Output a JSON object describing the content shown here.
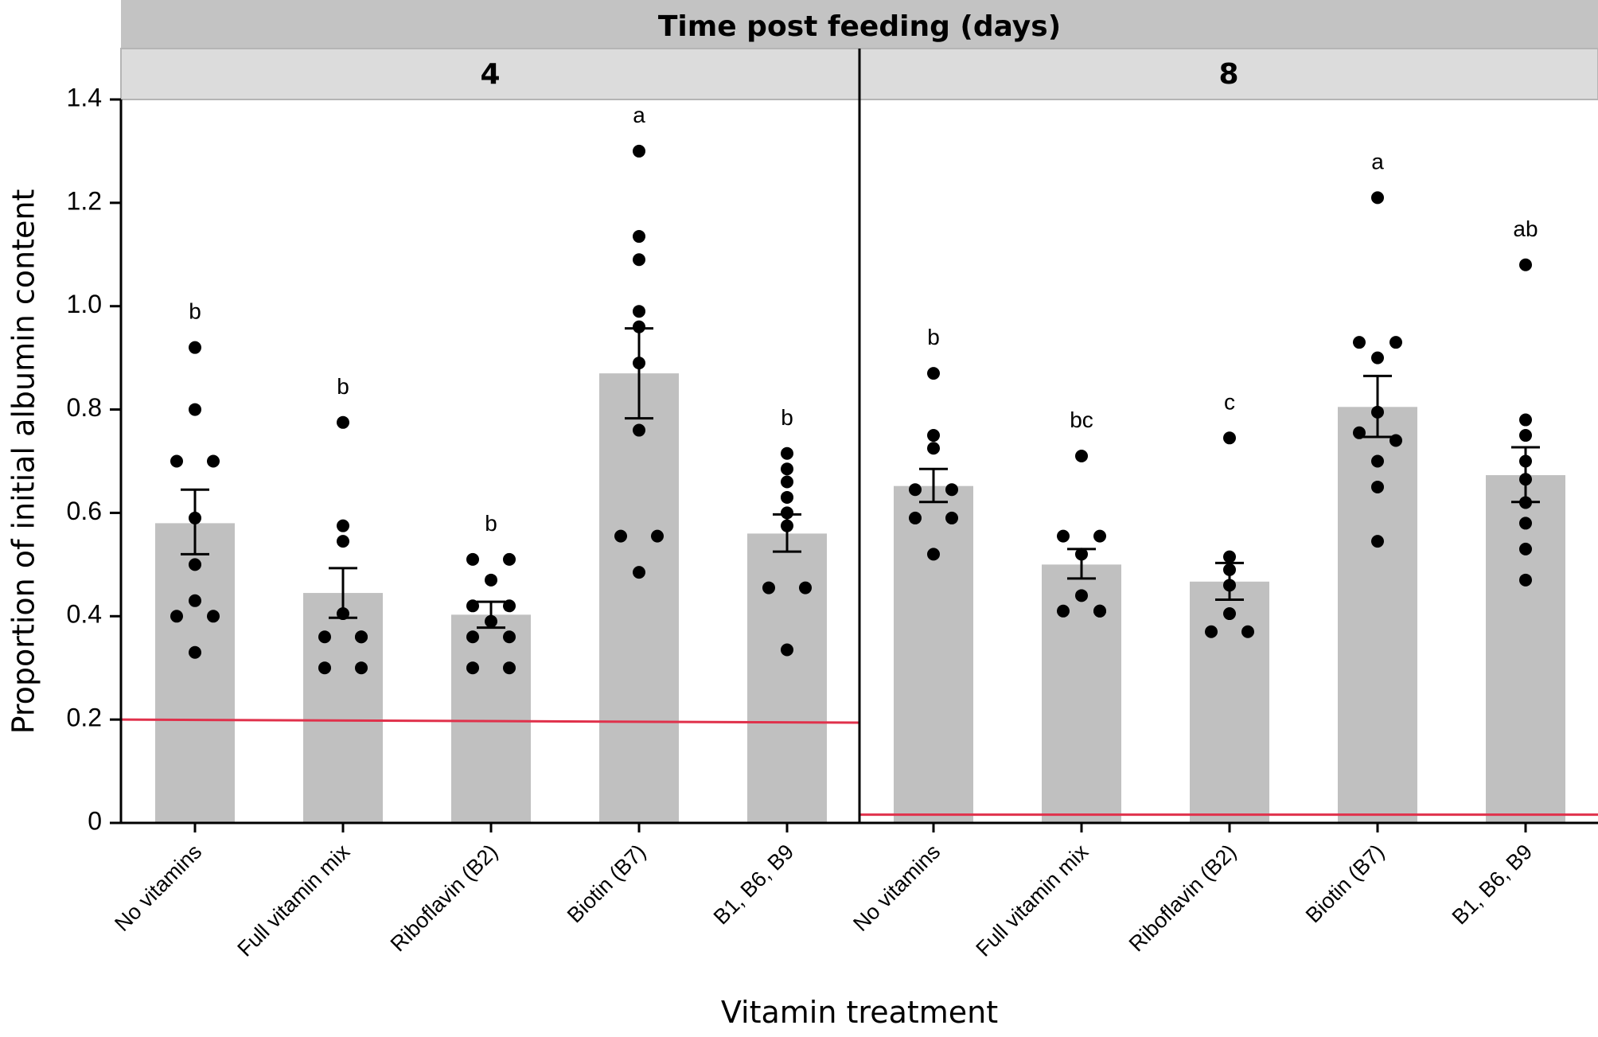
{
  "chart_data": {
    "type": "bar",
    "title": "Time post feeding (days)",
    "xlabel": "Vitamin treatment",
    "ylabel": "Proportion of initial albumin content",
    "ylim": [
      0,
      1.4
    ],
    "yticks": [
      "0",
      "0.2",
      "0.4",
      "0.6",
      "0.8",
      "1.0",
      "1.2",
      "1.4"
    ],
    "ytick_values": [
      0,
      0.2,
      0.4,
      0.6,
      0.8,
      1.0,
      1.2,
      1.4
    ],
    "categories": [
      "No vitamins",
      "Full vitamin mix",
      "Riboflavin (B2)",
      "Biotin (B7)",
      "B1, B6, B9"
    ],
    "colors": {
      "bar": "#c0c0c0",
      "points": "#000000",
      "reference_line": "#e0314b",
      "strip_outer": "#c3c3c3",
      "strip_inner": "#dcdcdc"
    },
    "panels": [
      {
        "label": "4",
        "reference_line": [
          0.2,
          0.194
        ],
        "groups": [
          {
            "category": "No vitamins",
            "mean": 0.58,
            "se_low": 0.52,
            "se_high": 0.645,
            "letter": "b",
            "points": [
              0.92,
              0.8,
              0.7,
              0.7,
              0.59,
              0.5,
              0.43,
              0.4,
              0.4,
              0.33
            ]
          },
          {
            "category": "Full vitamin mix",
            "mean": 0.445,
            "se_low": 0.397,
            "se_high": 0.493,
            "letter": "b",
            "points": [
              0.775,
              0.575,
              0.545,
              0.405,
              0.36,
              0.36,
              0.36,
              0.3,
              0.3
            ]
          },
          {
            "category": "Riboflavin (B2)",
            "mean": 0.403,
            "se_low": 0.378,
            "se_high": 0.428,
            "letter": "b",
            "points": [
              0.51,
              0.51,
              0.47,
              0.42,
              0.42,
              0.39,
              0.36,
              0.36,
              0.3,
              0.3
            ]
          },
          {
            "category": "Biotin (B7)",
            "mean": 0.87,
            "se_low": 0.783,
            "se_high": 0.957,
            "letter": "a",
            "points": [
              1.3,
              1.135,
              1.09,
              0.99,
              0.96,
              0.89,
              0.76,
              0.555,
              0.555,
              0.485
            ]
          },
          {
            "category": "B1, B6, B9",
            "mean": 0.56,
            "se_low": 0.525,
            "se_high": 0.597,
            "letter": "b",
            "points": [
              0.715,
              0.685,
              0.66,
              0.63,
              0.6,
              0.575,
              0.455,
              0.455,
              0.335
            ]
          }
        ]
      },
      {
        "label": "8",
        "reference_line": [
          0.016,
          0.016
        ],
        "groups": [
          {
            "category": "No vitamins",
            "mean": 0.652,
            "se_low": 0.621,
            "se_high": 0.685,
            "letter": "b",
            "points": [
              0.87,
              0.75,
              0.725,
              0.645,
              0.645,
              0.59,
              0.59,
              0.52
            ]
          },
          {
            "category": "Full vitamin mix",
            "mean": 0.5,
            "se_low": 0.473,
            "se_high": 0.53,
            "letter": "bc",
            "points": [
              0.71,
              0.555,
              0.555,
              0.52,
              0.44,
              0.41,
              0.41,
              0.41
            ]
          },
          {
            "category": "Riboflavin (B2)",
            "mean": 0.467,
            "se_low": 0.432,
            "se_high": 0.503,
            "letter": "c",
            "points": [
              0.745,
              0.515,
              0.49,
              0.46,
              0.405,
              0.37,
              0.37
            ]
          },
          {
            "category": "Biotin (B7)",
            "mean": 0.805,
            "se_low": 0.747,
            "se_high": 0.865,
            "letter": "a",
            "points": [
              1.21,
              0.93,
              0.93,
              0.9,
              0.795,
              0.755,
              0.74,
              0.7,
              0.65,
              0.545
            ]
          },
          {
            "category": "B1, B6, B9",
            "mean": 0.673,
            "se_low": 0.621,
            "se_high": 0.727,
            "letter": "ab",
            "points": [
              1.08,
              0.78,
              0.75,
              0.7,
              0.665,
              0.62,
              0.58,
              0.53,
              0.47
            ]
          }
        ]
      }
    ]
  }
}
